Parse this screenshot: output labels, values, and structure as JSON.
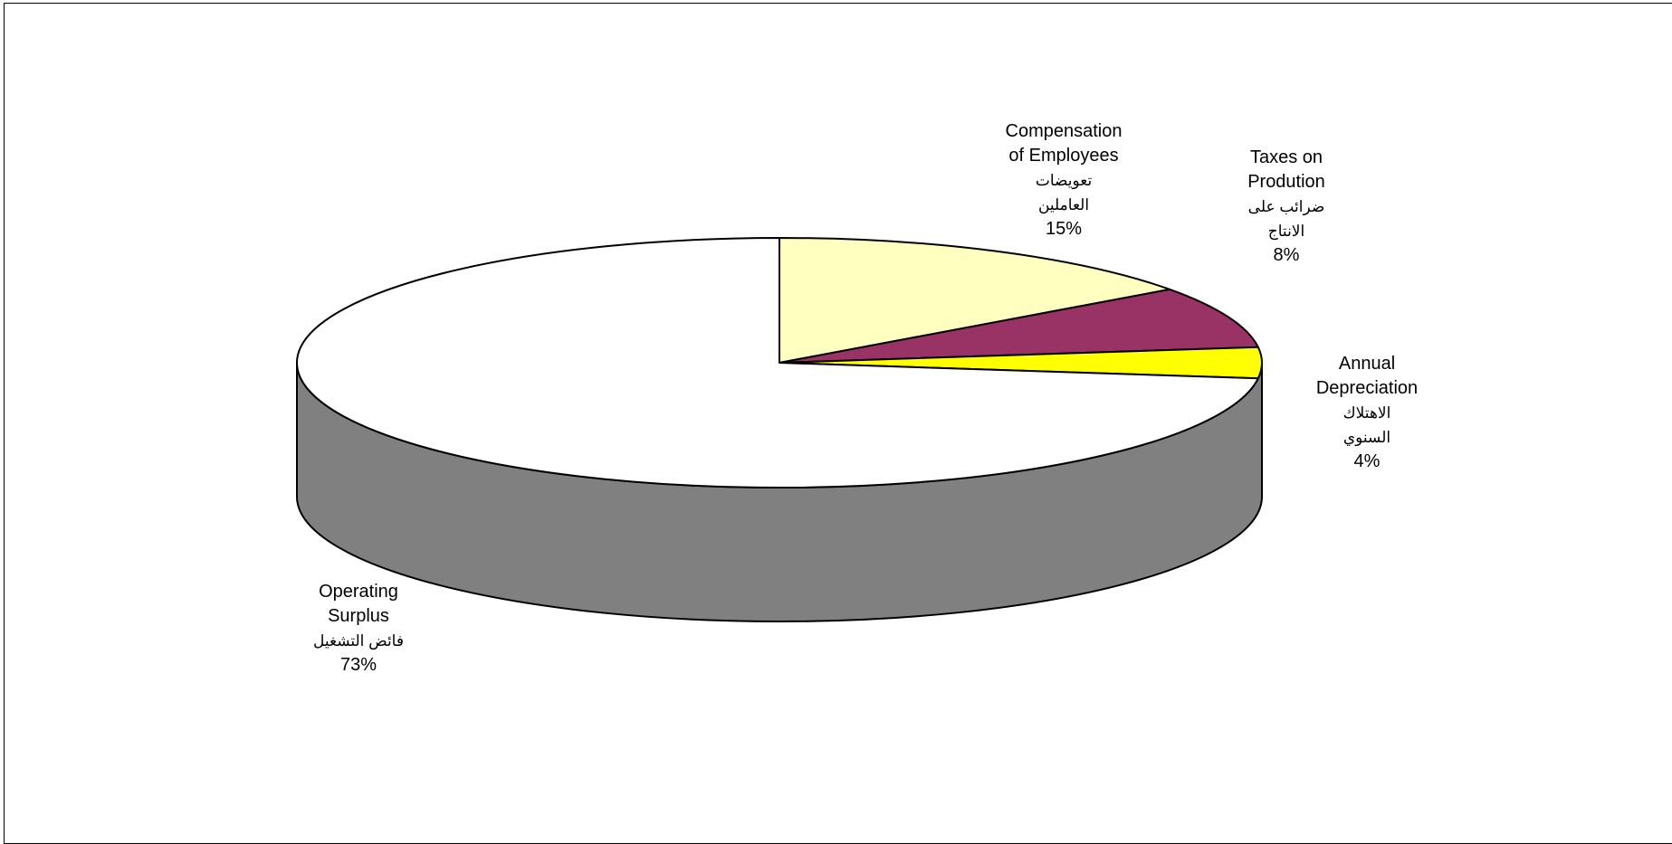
{
  "chart_data": {
    "type": "pie",
    "three_d": true,
    "title": "",
    "slices": [
      {
        "name_en": "Compensation\nof Employees",
        "name_ar": "تعويضات\nالعاملين",
        "value": 15,
        "label": "15%",
        "color": "#FFFFC0"
      },
      {
        "name_en": "Taxes on\nProdution",
        "name_ar": "ضرائب على\nالانتاج",
        "value": 8,
        "label": "8%",
        "color": "#993366"
      },
      {
        "name_en": "Annual\nDepreciation",
        "name_ar": "الاهتلاك\nالسنوي",
        "value": 4,
        "label": "4%",
        "color": "#FFFF00"
      },
      {
        "name_en": "Operating\nSurplus",
        "name_ar": "فائض التشغيل",
        "value": 73,
        "label": "73%",
        "color": "#FFFFFF"
      }
    ],
    "side_color": "#808080",
    "legend": "none"
  }
}
